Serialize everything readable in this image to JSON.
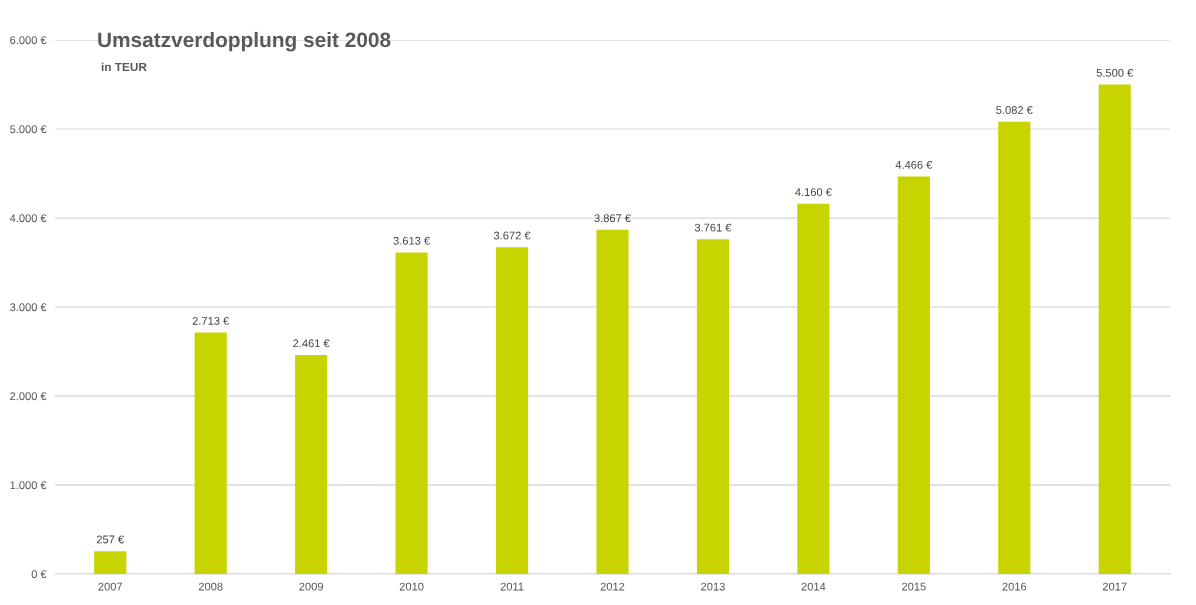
{
  "chart_data": {
    "type": "bar",
    "title": "Umsatzverdopplung seit 2008",
    "subtitle": "in TEUR",
    "categories": [
      "2007",
      "2008",
      "2009",
      "2010",
      "2011",
      "2012",
      "2013",
      "2014",
      "2015",
      "2016",
      "2017"
    ],
    "values": [
      257,
      2713,
      2461,
      3613,
      3672,
      3867,
      3761,
      4160,
      4466,
      5082,
      5500
    ],
    "value_labels": [
      "257 €",
      "2.713 €",
      "2.461 €",
      "3.613 €",
      "3.672 €",
      "3.867 €",
      "3.761 €",
      "4.160 €",
      "4.466 €",
      "5.082 €",
      "5.500 €"
    ],
    "color": "#c8d400",
    "ylim": [
      0,
      6000
    ],
    "yticks": [
      {
        "value": 0,
        "label": "0 €"
      },
      {
        "value": 1000,
        "label": "1.000 €"
      },
      {
        "value": 2000,
        "label": "2.000 €"
      },
      {
        "value": 3000,
        "label": "3.000 €"
      },
      {
        "value": 4000,
        "label": "4.000 €"
      },
      {
        "value": 5000,
        "label": "5.000 €"
      },
      {
        "value": 6000,
        "label": "6.000 €"
      }
    ],
    "grid": "y",
    "legend": false
  }
}
